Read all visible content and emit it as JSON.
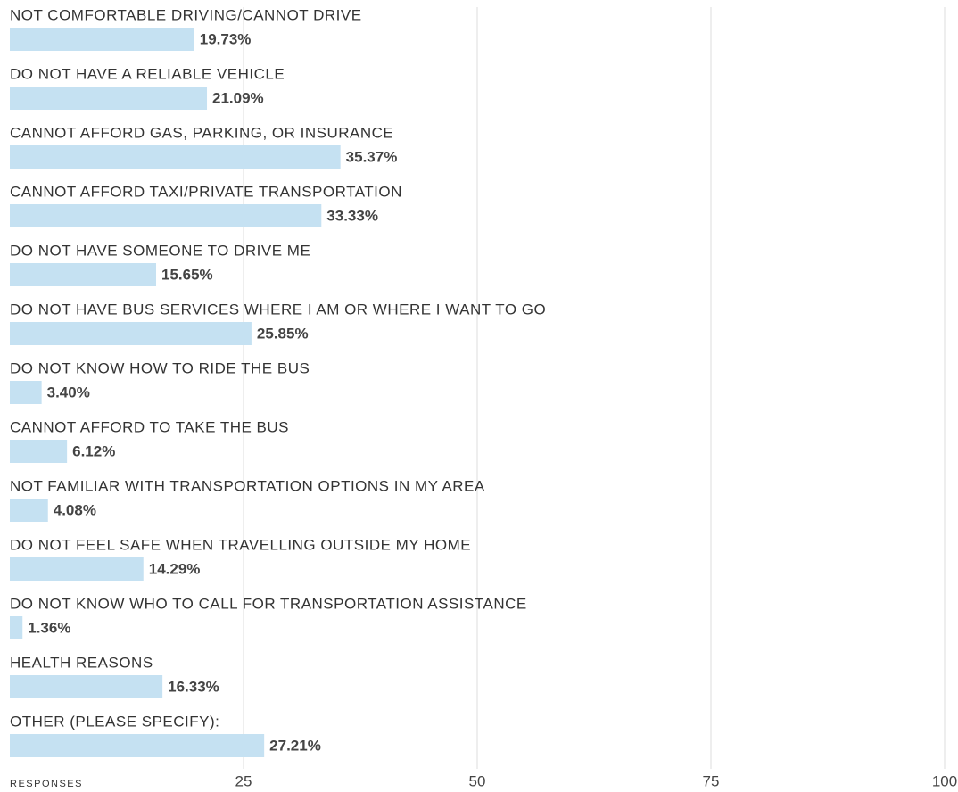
{
  "chart_data": {
    "type": "hbar",
    "categories": [
      "NOT COMFORTABLE DRIVING/CANNOT DRIVE",
      "DO NOT HAVE A RELIABLE VEHICLE",
      "CANNOT AFFORD GAS, PARKING, OR INSURANCE",
      "CANNOT AFFORD TAXI/PRIVATE TRANSPORTATION",
      "DO NOT HAVE SOMEONE TO DRIVE ME",
      "DO NOT HAVE BUS SERVICES WHERE I AM OR WHERE I WANT TO GO",
      "DO NOT KNOW HOW TO RIDE THE BUS",
      "CANNOT AFFORD TO TAKE THE BUS",
      "NOT FAMILIAR WITH TRANSPORTATION OPTIONS IN MY AREA",
      "DO NOT FEEL SAFE WHEN TRAVELLING OUTSIDE MY HOME",
      "DO NOT KNOW WHO TO CALL FOR TRANSPORTATION ASSISTANCE",
      "HEALTH REASONS",
      "OTHER (PLEASE SPECIFY):"
    ],
    "values": [
      19.73,
      21.09,
      35.37,
      33.33,
      15.65,
      25.85,
      3.4,
      6.12,
      4.08,
      14.29,
      1.36,
      16.33,
      27.21
    ],
    "value_labels": [
      "19.73%",
      "21.09%",
      "35.37%",
      "33.33%",
      "15.65%",
      "25.85%",
      "3.40%",
      "6.12%",
      "4.08%",
      "14.29%",
      "1.36%",
      "16.33%",
      "27.21%"
    ],
    "color": "#c5e1f2",
    "xlabel": "RESPONSES",
    "xlim": [
      0,
      100
    ],
    "xticks": [
      25,
      50,
      75,
      100
    ],
    "grid": true
  }
}
